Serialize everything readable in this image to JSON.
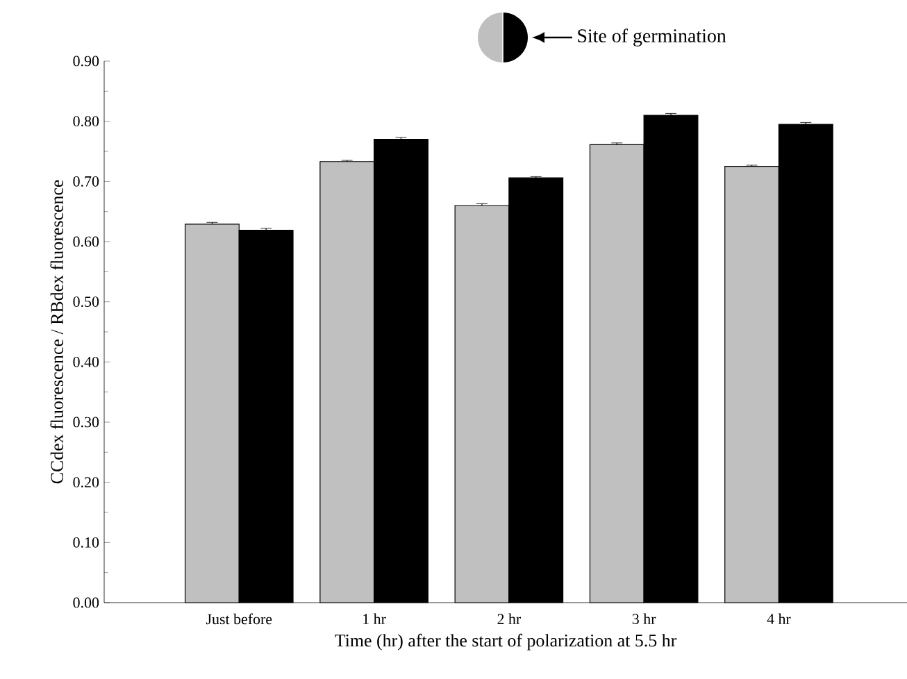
{
  "chart_data": {
    "type": "bar",
    "xlabel": "Time (hr) after the start of polarization at 5.5 hr",
    "ylabel": "CCdex fluorescence / RBdex fluorescence",
    "categories": [
      "Just before",
      "1 hr",
      "2 hr",
      "3 hr",
      "4 hr"
    ],
    "series": [
      {
        "color": "#c0c0c0",
        "values": [
          0.629,
          0.733,
          0.66,
          0.761,
          0.725
        ],
        "errors": [
          0.003,
          0.002,
          0.003,
          0.003,
          0.002
        ]
      },
      {
        "color": "#000000",
        "values": [
          0.619,
          0.77,
          0.706,
          0.81,
          0.795
        ],
        "errors": [
          0.003,
          0.003,
          0.002,
          0.003,
          0.003
        ]
      }
    ],
    "ylim": [
      0,
      0.9
    ],
    "yticks": [
      {
        "value": 0,
        "label": "0.00"
      },
      {
        "value": 0.1,
        "label": "0.10"
      },
      {
        "value": 0.2,
        "label": "0.20"
      },
      {
        "value": 0.3,
        "label": "0.30"
      },
      {
        "value": 0.4,
        "label": "0.40"
      },
      {
        "value": 0.5,
        "label": "0.50"
      },
      {
        "value": 0.6,
        "label": "0.60"
      },
      {
        "value": 0.7,
        "label": "0.70"
      },
      {
        "value": 0.8,
        "label": "0.80"
      },
      {
        "value": 0.9,
        "label": "0.90"
      }
    ],
    "grid": false,
    "annotations": [
      "Site of germination"
    ]
  }
}
